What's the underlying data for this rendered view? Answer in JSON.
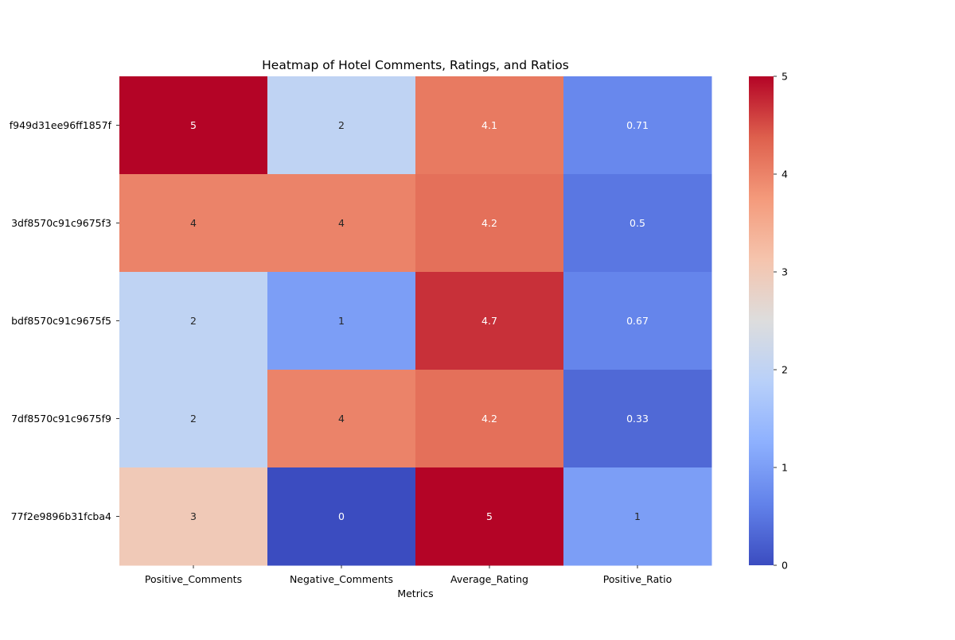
{
  "chart_data": {
    "type": "heatmap",
    "title": "Heatmap of Hotel Comments, Ratings, and Ratios",
    "xlabel": "Metrics",
    "ylabel": "",
    "columns": [
      "Positive_Comments",
      "Negative_Comments",
      "Average_Rating",
      "Positive_Ratio"
    ],
    "rows": [
      "f949d31ee96ff1857f",
      "3df8570c91c9675f3",
      "bdf8570c91c9675f5",
      "7df8570c91c9675f9",
      "77f2e9896b31fcba4"
    ],
    "values": [
      [
        5,
        2,
        4.1,
        0.71
      ],
      [
        4,
        4,
        4.2,
        0.5
      ],
      [
        2,
        1,
        4.7,
        0.67
      ],
      [
        2,
        4,
        4.2,
        0.33
      ],
      [
        3,
        0,
        5,
        1
      ]
    ],
    "cell_labels": [
      [
        "5",
        "2",
        "4.1",
        "0.71"
      ],
      [
        "4",
        "4",
        "4.2",
        "0.5"
      ],
      [
        "2",
        "1",
        "4.7",
        "0.67"
      ],
      [
        "2",
        "4",
        "4.2",
        "0.33"
      ],
      [
        "3",
        "0",
        "5",
        "1"
      ]
    ],
    "colormap": "coolwarm",
    "vmin": 0,
    "vmax": 5,
    "colorbar_ticks": [
      "0",
      "1",
      "2",
      "3",
      "4",
      "5"
    ],
    "colorbar_tick_values": [
      0,
      1,
      2,
      3,
      4,
      5
    ]
  }
}
